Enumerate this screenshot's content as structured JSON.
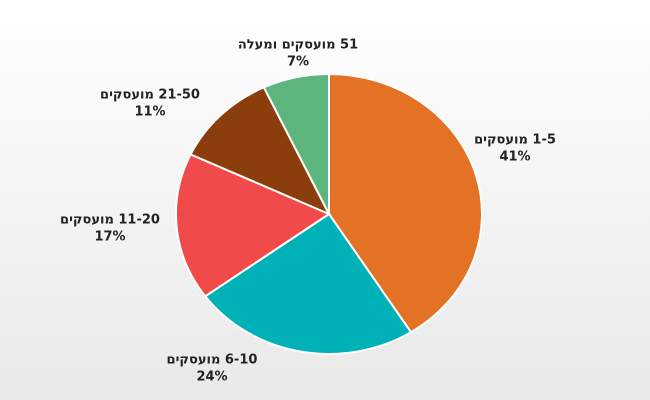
{
  "chart_data": {
    "type": "pie",
    "categories": [
      "1-5 מועסקים",
      "6-10 מועסקים",
      "11-20 מועסקים",
      "21-50 מועסקים",
      "51 מועסקים ומעלה"
    ],
    "values": [
      41,
      24,
      17,
      11,
      7
    ],
    "value_labels": [
      "41%",
      "24%",
      "17%",
      "11%",
      "7%"
    ],
    "colors": [
      "#e37225",
      "#00b2b8",
      "#f04b4a",
      "#8b3e0c",
      "#5db57e"
    ]
  }
}
